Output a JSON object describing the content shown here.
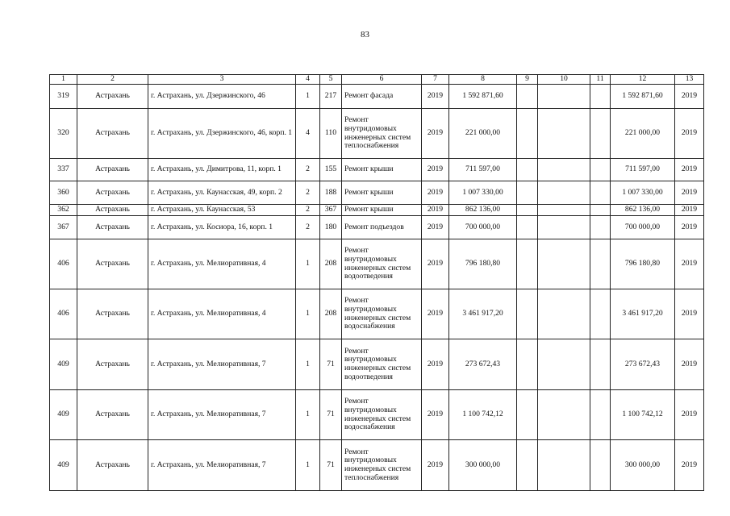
{
  "page_number": "83",
  "table": {
    "headers": [
      "1",
      "2",
      "3",
      "4",
      "5",
      "6",
      "7",
      "8",
      "9",
      "10",
      "11",
      "12",
      "13"
    ],
    "rows": [
      [
        "319",
        "Астрахань",
        "г. Астрахань, ул. Дзержинского, 46",
        "1",
        "217",
        "Ремонт фасада",
        "2019",
        "1 592 871,60",
        "",
        "",
        "",
        "1 592 871,60",
        "2019"
      ],
      [
        "320",
        "Астрахань",
        "г. Астрахань, ул. Дзержинского, 46, корп. 1",
        "4",
        "110",
        "Ремонт внутридомовых инженерных систем теплоснабжения",
        "2019",
        "221 000,00",
        "",
        "",
        "",
        "221 000,00",
        "2019"
      ],
      [
        "337",
        "Астрахань",
        "г. Астрахань, ул. Димитрова, 11, корп. 1",
        "2",
        "155",
        "Ремонт крыши",
        "2019",
        "711 597,00",
        "",
        "",
        "",
        "711 597,00",
        "2019"
      ],
      [
        "360",
        "Астрахань",
        "г. Астрахань, ул. Каунасская, 49, корп. 2",
        "2",
        "188",
        "Ремонт крыши",
        "2019",
        "1 007 330,00",
        "",
        "",
        "",
        "1 007 330,00",
        "2019"
      ],
      [
        "362",
        "Астрахань",
        "г. Астрахань, ул. Каунасская, 53",
        "2",
        "367",
        "Ремонт крыши",
        "2019",
        "862 136,00",
        "",
        "",
        "",
        "862 136,00",
        "2019"
      ],
      [
        "367",
        "Астрахань",
        "г. Астрахань, ул. Косиора, 16, корп. 1",
        "2",
        "180",
        "Ремонт подъездов",
        "2019",
        "700 000,00",
        "",
        "",
        "",
        "700 000,00",
        "2019"
      ],
      [
        "406",
        "Астрахань",
        "г. Астрахань, ул. Мелиоративная, 4",
        "1",
        "208",
        "Ремонт внутридомовых инженерных систем водоотведения",
        "2019",
        "796 180,80",
        "",
        "",
        "",
        "796 180,80",
        "2019"
      ],
      [
        "406",
        "Астрахань",
        "г. Астрахань, ул. Мелиоративная, 4",
        "1",
        "208",
        "Ремонт внутридомовых инженерных систем водоснабжения",
        "2019",
        "3 461 917,20",
        "",
        "",
        "",
        "3 461 917,20",
        "2019"
      ],
      [
        "409",
        "Астрахань",
        "г. Астрахань, ул. Мелиоративная, 7",
        "1",
        "71",
        "Ремонт внутридомовых инженерных систем водоотведения",
        "2019",
        "273 672,43",
        "",
        "",
        "",
        "273 672,43",
        "2019"
      ],
      [
        "409",
        "Астрахань",
        "г. Астрахань, ул. Мелиоративная, 7",
        "1",
        "71",
        "Ремонт внутридомовых инженерных систем водоснабжения",
        "2019",
        "1 100 742,12",
        "",
        "",
        "",
        "1 100 742,12",
        "2019"
      ],
      [
        "409",
        "Астрахань",
        "г. Астрахань, ул. Мелиоративная, 7",
        "1",
        "71",
        "Ремонт внутридомовых инженерных систем теплоснабжения",
        "2019",
        "300 000,00",
        "",
        "",
        "",
        "300 000,00",
        "2019"
      ]
    ]
  }
}
